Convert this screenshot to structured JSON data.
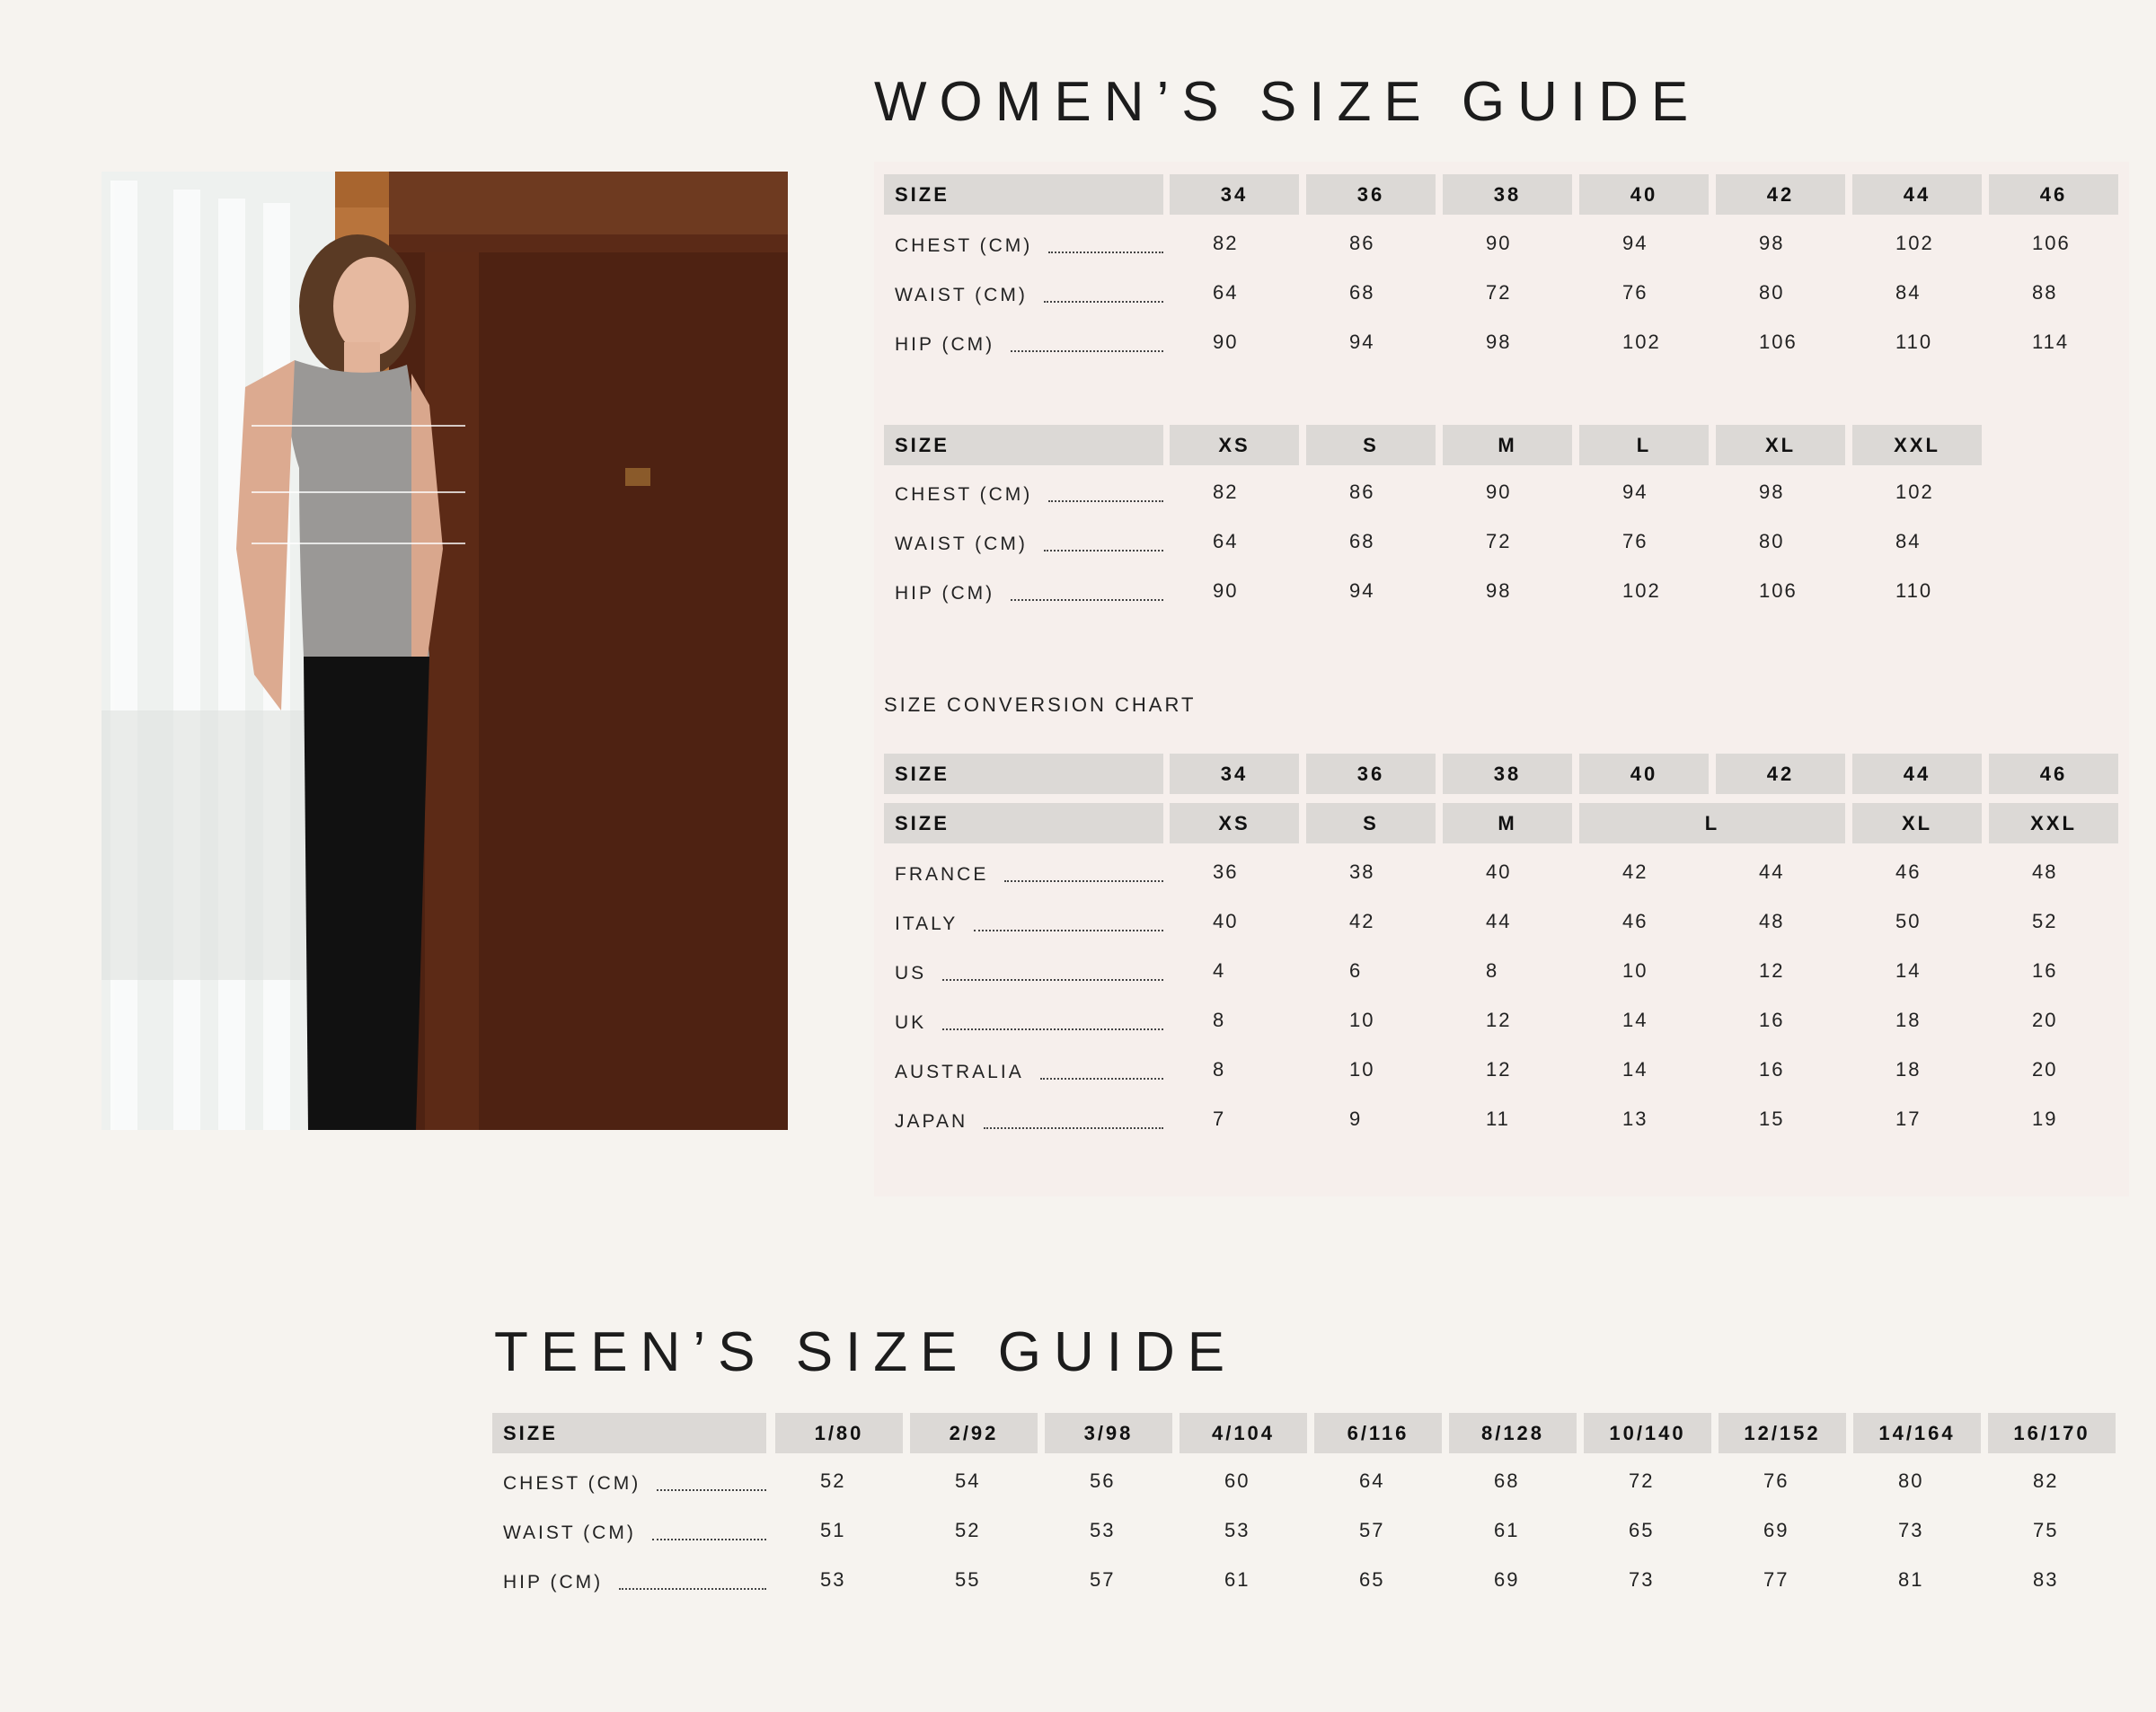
{
  "women_title": "WOMEN’S SIZE GUIDE",
  "teen_title": "TEEN’S SIZE GUIDE",
  "conversion_title": "SIZE CONVERSION CHART",
  "colors": {
    "background": "#f6f3ef",
    "panel": "#f6efec",
    "header_cell": "#dcd9d6"
  },
  "women_numeric": {
    "header": {
      "label": "SIZE",
      "sizes": [
        "34",
        "36",
        "38",
        "40",
        "42",
        "44",
        "46"
      ]
    },
    "rows": [
      {
        "label": "CHEST (CM)",
        "values": [
          "82",
          "86",
          "90",
          "94",
          "98",
          "102",
          "106"
        ]
      },
      {
        "label": "WAIST (CM)",
        "values": [
          "64",
          "68",
          "72",
          "76",
          "80",
          "84",
          "88"
        ]
      },
      {
        "label": "HIP (CM)",
        "values": [
          "90",
          "94",
          "98",
          "102",
          "106",
          "110",
          "114"
        ]
      }
    ]
  },
  "women_letter": {
    "header": {
      "label": "SIZE",
      "sizes": [
        "XS",
        "S",
        "M",
        "L",
        "XL",
        "XXL"
      ]
    },
    "rows": [
      {
        "label": "CHEST (CM)",
        "values": [
          "82",
          "86",
          "90",
          "94",
          "98",
          "102"
        ]
      },
      {
        "label": "WAIST (CM)",
        "values": [
          "64",
          "68",
          "72",
          "76",
          "80",
          "84"
        ]
      },
      {
        "label": "HIP (CM)",
        "values": [
          "90",
          "94",
          "98",
          "102",
          "106",
          "110"
        ]
      }
    ]
  },
  "conversion": {
    "header": {
      "label": "SIZE",
      "sizes": [
        "34",
        "36",
        "38",
        "40",
        "42",
        "44",
        "46"
      ]
    },
    "header2": {
      "label": "SIZE",
      "sizes": [
        "XS",
        "S",
        "M",
        "L",
        "XL",
        "XXL"
      ]
    },
    "rows": [
      {
        "label": "FRANCE",
        "values": [
          "36",
          "38",
          "40",
          "42",
          "44",
          "46",
          "48"
        ]
      },
      {
        "label": "ITALY",
        "values": [
          "40",
          "42",
          "44",
          "46",
          "48",
          "50",
          "52"
        ]
      },
      {
        "label": "US",
        "values": [
          "4",
          "6",
          "8",
          "10",
          "12",
          "14",
          "16"
        ]
      },
      {
        "label": "UK",
        "values": [
          "8",
          "10",
          "12",
          "14",
          "16",
          "18",
          "20"
        ]
      },
      {
        "label": "AUSTRALIA",
        "values": [
          "8",
          "10",
          "12",
          "14",
          "16",
          "18",
          "20"
        ]
      },
      {
        "label": "JAPAN",
        "values": [
          "7",
          "9",
          "11",
          "13",
          "15",
          "17",
          "19"
        ]
      }
    ]
  },
  "teen": {
    "header": {
      "label": "SIZE",
      "sizes": [
        "1/80",
        "2/92",
        "3/98",
        "4/104",
        "6/116",
        "8/128",
        "10/140",
        "12/152",
        "14/164",
        "16/170"
      ]
    },
    "rows": [
      {
        "label": "CHEST (CM)",
        "values": [
          "52",
          "54",
          "56",
          "60",
          "64",
          "68",
          "72",
          "76",
          "80",
          "82"
        ]
      },
      {
        "label": "WAIST (CM)",
        "values": [
          "51",
          "52",
          "53",
          "53",
          "57",
          "61",
          "65",
          "69",
          "73",
          "75"
        ]
      },
      {
        "label": "HIP (CM)",
        "values": [
          "53",
          "55",
          "57",
          "61",
          "65",
          "69",
          "73",
          "77",
          "81",
          "83"
        ]
      }
    ]
  }
}
